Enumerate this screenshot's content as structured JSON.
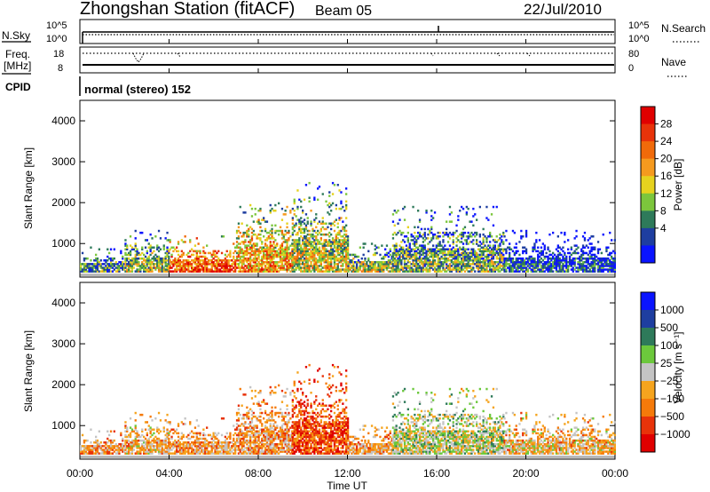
{
  "header": {
    "station": "Zhongshan Station (fitACF)",
    "beam": "Beam 05",
    "date": "22/Jul/2010"
  },
  "status_panels": {
    "nsky_label": "N.Sky",
    "nsearch_label": "N.Search",
    "freq_label_1": "Freq.",
    "freq_label_2": "[MHz]",
    "nave_label": "Nave",
    "cpid_label": "CPID",
    "cpid_text": "normal (stereo) 152",
    "nsky_ticks": [
      "10^5",
      "10^0"
    ],
    "nsearch_ticks": [
      "10^5",
      "10^0"
    ],
    "freq_ticks": [
      "18",
      "8"
    ],
    "nave_ticks": [
      "80",
      "0"
    ]
  },
  "colorbars": {
    "power_label": "Power [dB]",
    "power_ticks": [
      "28",
      "24",
      "20",
      "16",
      "12",
      "8",
      "4"
    ],
    "velocity_label": "Velocity [m s⁻¹]",
    "velocity_ticks": [
      "1000",
      "500",
      "100",
      "25",
      "−25",
      "−100",
      "−500",
      "−1000"
    ],
    "power_colors": [
      "#0a14ff",
      "#1e3ea0",
      "#2e7a5a",
      "#7cc63c",
      "#e6d21e",
      "#f59a1e",
      "#f06a0a",
      "#e8330a",
      "#e00000"
    ],
    "velocity_colors": [
      "#e00000",
      "#e8330a",
      "#f57a0a",
      "#f5a41e",
      "#c4c4c4",
      "#6cc83c",
      "#2e7a5a",
      "#1e3ea0",
      "#0a14ff"
    ]
  },
  "chart_data": [
    {
      "type": "heatmap",
      "title": "Power",
      "xlabel": "Time UT",
      "ylabel": "Slant Range [km]",
      "xlim": [
        0,
        24
      ],
      "ylim": [
        180,
        4500
      ],
      "x_ticks": [
        "00:00",
        "04:00",
        "08:00",
        "12:00",
        "16:00",
        "20:00",
        "00:00"
      ],
      "y_ticks": [
        "1000",
        "2000",
        "3000",
        "4000"
      ],
      "colorbar_range": [
        0,
        30
      ],
      "colorbar_unit": "dB",
      "echo_bands": [
        {
          "t_start": 0.0,
          "t_end": 2.0,
          "range_low": 300,
          "range_high": 900,
          "level": 10
        },
        {
          "t_start": 2.0,
          "t_end": 4.0,
          "range_low": 300,
          "range_high": 1300,
          "level": 14
        },
        {
          "t_start": 4.0,
          "t_end": 7.0,
          "range_low": 300,
          "range_high": 1200,
          "level": 24
        },
        {
          "t_start": 7.0,
          "t_end": 9.5,
          "range_low": 300,
          "range_high": 2000,
          "level": 20
        },
        {
          "t_start": 9.5,
          "t_end": 12.0,
          "range_low": 300,
          "range_high": 2500,
          "level": 16
        },
        {
          "t_start": 12.0,
          "t_end": 14.0,
          "range_low": 300,
          "range_high": 1000,
          "level": 14
        },
        {
          "t_start": 14.0,
          "t_end": 19.0,
          "range_low": 300,
          "range_high": 1900,
          "level": 12
        },
        {
          "t_start": 19.0,
          "t_end": 24.0,
          "range_low": 300,
          "range_high": 1300,
          "level": 6
        }
      ]
    },
    {
      "type": "heatmap",
      "title": "Velocity",
      "xlabel": "Time UT",
      "ylabel": "Slant Range [km]",
      "xlim": [
        0,
        24
      ],
      "ylim": [
        180,
        4500
      ],
      "x_ticks": [
        "00:00",
        "04:00",
        "08:00",
        "12:00",
        "16:00",
        "20:00",
        "00:00"
      ],
      "y_ticks": [
        "1000",
        "2000",
        "3000",
        "4000"
      ],
      "colorbar_range": [
        -1000,
        1000
      ],
      "colorbar_unit": "m s-1",
      "echo_bands": [
        {
          "t_start": 0.0,
          "t_end": 2.0,
          "range_low": 300,
          "range_high": 900,
          "level": -300
        },
        {
          "t_start": 2.0,
          "t_end": 4.0,
          "range_low": 300,
          "range_high": 1300,
          "level": -200
        },
        {
          "t_start": 4.0,
          "t_end": 7.0,
          "range_low": 300,
          "range_high": 1200,
          "level": -300
        },
        {
          "t_start": 7.0,
          "t_end": 9.5,
          "range_low": 300,
          "range_high": 2000,
          "level": -300
        },
        {
          "t_start": 9.5,
          "t_end": 12.0,
          "range_low": 300,
          "range_high": 2500,
          "level": -600
        },
        {
          "t_start": 12.0,
          "t_end": 14.0,
          "range_low": 300,
          "range_high": 1000,
          "level": -300
        },
        {
          "t_start": 14.0,
          "t_end": 19.0,
          "range_low": 300,
          "range_high": 1900,
          "level": 50
        },
        {
          "t_start": 19.0,
          "t_end": 24.0,
          "range_low": 300,
          "range_high": 1300,
          "level": -200
        }
      ]
    }
  ]
}
